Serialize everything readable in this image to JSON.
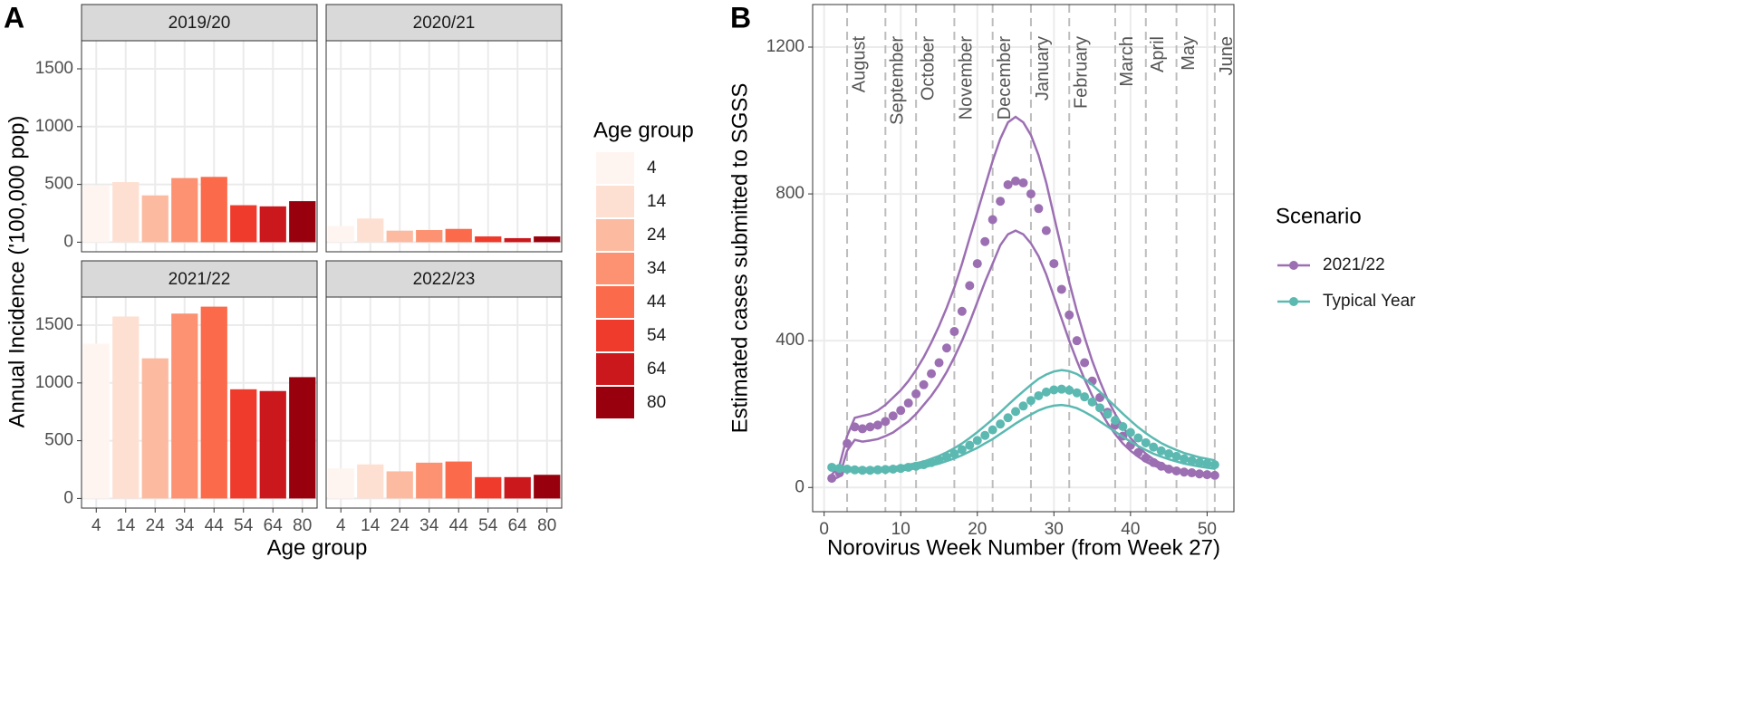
{
  "chart_data": [
    {
      "type": "facet_bar",
      "panel": "A",
      "categories": [
        "4",
        "14",
        "24",
        "34",
        "44",
        "54",
        "64",
        "80"
      ],
      "colors": [
        "#fff5f0",
        "#fee0d2",
        "#fcbba1",
        "#fc9272",
        "#fb6a4a",
        "#ef3b2c",
        "#cb181d",
        "#99000d"
      ],
      "facets": [
        {
          "title": "2019/20",
          "values": [
            490,
            520,
            405,
            555,
            565,
            320,
            310,
            355
          ]
        },
        {
          "title": "2020/21",
          "values": [
            140,
            205,
            100,
            105,
            115,
            50,
            35,
            50
          ]
        },
        {
          "title": "2021/22",
          "values": [
            1340,
            1575,
            1213,
            1600,
            1660,
            945,
            930,
            1050
          ]
        },
        {
          "title": "2022/23",
          "values": [
            260,
            295,
            235,
            310,
            320,
            185,
            185,
            205
          ]
        }
      ],
      "xlabel": "Age group",
      "ylabel": "Annual Incidence ('100,000 pop)",
      "legend_title": "Age group",
      "ylim": [
        -83,
        1743
      ],
      "yticks": [
        0,
        500,
        1000,
        1500
      ],
      "grid": true
    },
    {
      "type": "line",
      "panel": "B",
      "x": [
        1,
        2,
        3,
        4,
        5,
        6,
        7,
        8,
        9,
        10,
        11,
        12,
        13,
        14,
        15,
        16,
        17,
        18,
        19,
        20,
        21,
        22,
        23,
        24,
        25,
        26,
        27,
        28,
        29,
        30,
        31,
        32,
        33,
        34,
        35,
        36,
        37,
        38,
        39,
        40,
        41,
        42,
        43,
        44,
        45,
        46,
        47,
        48,
        49,
        50,
        51
      ],
      "series": [
        {
          "name": "2021/22",
          "color": "#9c6fb3",
          "values": [
            25,
            40,
            120,
            165,
            160,
            165,
            170,
            180,
            195,
            210,
            230,
            255,
            280,
            310,
            340,
            380,
            425,
            480,
            550,
            610,
            670,
            730,
            780,
            825,
            835,
            830,
            800,
            760,
            700,
            610,
            540,
            470,
            400,
            340,
            290,
            245,
            205,
            170,
            140,
            115,
            95,
            80,
            68,
            58,
            50,
            45,
            42,
            40,
            37,
            35,
            33
          ],
          "upper": [
            35,
            60,
            140,
            190,
            195,
            200,
            210,
            225,
            245,
            265,
            290,
            320,
            355,
            395,
            440,
            490,
            545,
            610,
            680,
            750,
            820,
            890,
            950,
            995,
            1010,
            995,
            960,
            905,
            830,
            740,
            650,
            560,
            480,
            410,
            345,
            290,
            240,
            200,
            165,
            135,
            112,
            92,
            77,
            65,
            56,
            50,
            46,
            43,
            40,
            38,
            36
          ],
          "lower": [
            20,
            30,
            100,
            130,
            125,
            128,
            132,
            140,
            150,
            165,
            180,
            200,
            225,
            250,
            280,
            315,
            355,
            400,
            450,
            505,
            560,
            610,
            660,
            690,
            700,
            690,
            665,
            630,
            580,
            520,
            460,
            400,
            345,
            295,
            250,
            210,
            175,
            145,
            120,
            100,
            84,
            70,
            60,
            52,
            46,
            42,
            39,
            37,
            35,
            33,
            32
          ]
        },
        {
          "name": "Typical Year",
          "color": "#5bb9b1",
          "values": [
            55,
            52,
            50,
            48,
            47,
            47,
            48,
            49,
            50,
            52,
            55,
            58,
            62,
            68,
            75,
            83,
            92,
            103,
            115,
            128,
            142,
            157,
            173,
            190,
            207,
            222,
            237,
            250,
            260,
            266,
            268,
            265,
            258,
            247,
            233,
            217,
            200,
            183,
            166,
            150,
            135,
            122,
            110,
            100,
            92,
            85,
            78,
            73,
            68,
            65,
            62
          ],
          "upper": [
            60,
            57,
            55,
            53,
            52,
            52,
            53,
            54,
            56,
            58,
            62,
            66,
            71,
            78,
            86,
            96,
            107,
            120,
            135,
            151,
            168,
            186,
            205,
            225,
            244,
            262,
            280,
            296,
            308,
            316,
            320,
            317,
            309,
            296,
            280,
            261,
            241,
            221,
            201,
            182,
            164,
            148,
            134,
            121,
            111,
            102,
            94,
            88,
            82,
            78,
            74
          ],
          "lower": [
            50,
            47,
            45,
            43,
            42,
            42,
            43,
            44,
            45,
            47,
            49,
            52,
            55,
            60,
            65,
            72,
            79,
            88,
            98,
            108,
            120,
            132,
            146,
            160,
            174,
            187,
            199,
            210,
            218,
            223,
            225,
            222,
            216,
            206,
            194,
            180,
            166,
            152,
            138,
            125,
            113,
            102,
            92,
            84,
            77,
            71,
            65,
            61,
            57,
            54,
            51
          ]
        }
      ],
      "months": {
        "labels": [
          "August",
          "September",
          "October",
          "November",
          "December",
          "January",
          "February",
          "March",
          "April",
          "May",
          "June"
        ],
        "weeks": [
          3,
          8,
          12,
          17,
          22,
          27,
          32,
          38,
          42,
          46,
          51
        ]
      },
      "xlabel": "Norovirus Week Number (from Week 27)",
      "ylabel": "Estimated cases submitted to SGSS",
      "legend_title": "Scenario",
      "xlim": [
        -1.5,
        53.5
      ],
      "xticks": [
        0,
        10,
        20,
        30,
        40,
        50
      ],
      "ylim": [
        -66,
        1316
      ],
      "yticks": [
        0,
        400,
        800,
        1200
      ],
      "grid": true
    }
  ]
}
